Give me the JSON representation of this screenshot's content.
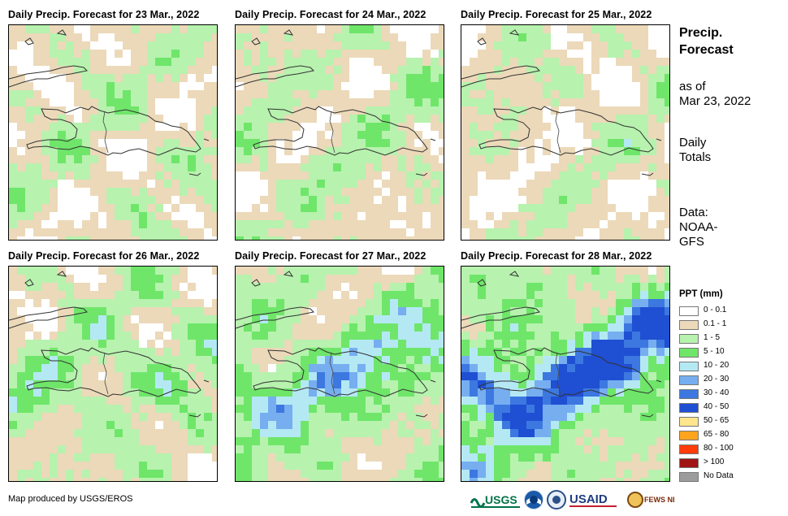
{
  "panels": [
    {
      "title": "Daily Precip. Forecast for 23 Mar., 2022",
      "seed": 11,
      "wet": 0.9
    },
    {
      "title": "Daily Precip. Forecast for 24 Mar., 2022",
      "seed": 23,
      "wet": 1.0
    },
    {
      "title": "Daily Precip. Forecast for 25 Mar., 2022",
      "seed": 37,
      "wet": 0.8
    },
    {
      "title": "Daily Precip. Forecast for 26 Mar., 2022",
      "seed": 41,
      "wet": 1.3
    },
    {
      "title": "Daily Precip. Forecast for 27 Mar., 2022",
      "seed": 53,
      "wet": 1.8
    },
    {
      "title": "Daily Precip. Forecast for 28 Mar., 2022",
      "seed": 67,
      "wet": 2.4
    }
  ],
  "sidebar": {
    "title_line1": "Precip.",
    "title_line2": "Forecast",
    "asof_line1": "as of",
    "asof_line2": "Mar 23, 2022",
    "totals_line1": "Daily",
    "totals_line2": "Totals",
    "data_line1": "Data:",
    "data_line2": "NOAA-",
    "data_line3": "GFS"
  },
  "legend": {
    "title": "PPT (mm)",
    "items": [
      {
        "label": "0 - 0.1",
        "color": "#ffffff"
      },
      {
        "label": "0.1 - 1",
        "color": "#ecd9b9"
      },
      {
        "label": "1 - 5",
        "color": "#b7f2ae"
      },
      {
        "label": "5 - 10",
        "color": "#6fe66a"
      },
      {
        "label": "10 - 20",
        "color": "#b4e9f4"
      },
      {
        "label": "20 - 30",
        "color": "#76aef0"
      },
      {
        "label": "30 - 40",
        "color": "#3c78e0"
      },
      {
        "label": "40 - 50",
        "color": "#1f4fd2"
      },
      {
        "label": "50 - 65",
        "color": "#ffe68c"
      },
      {
        "label": "65 - 80",
        "color": "#ffa41e"
      },
      {
        "label": "80 - 100",
        "color": "#ff3c0a"
      },
      {
        "label": "> 100",
        "color": "#a01414"
      },
      {
        "label": "No Data",
        "color": "#9c9c9c"
      }
    ]
  },
  "credit": "Map produced by USGS/EROS",
  "logos": {
    "usgs": "USGS",
    "usaid": "USAID",
    "fewsnet": "FEWS NET"
  }
}
